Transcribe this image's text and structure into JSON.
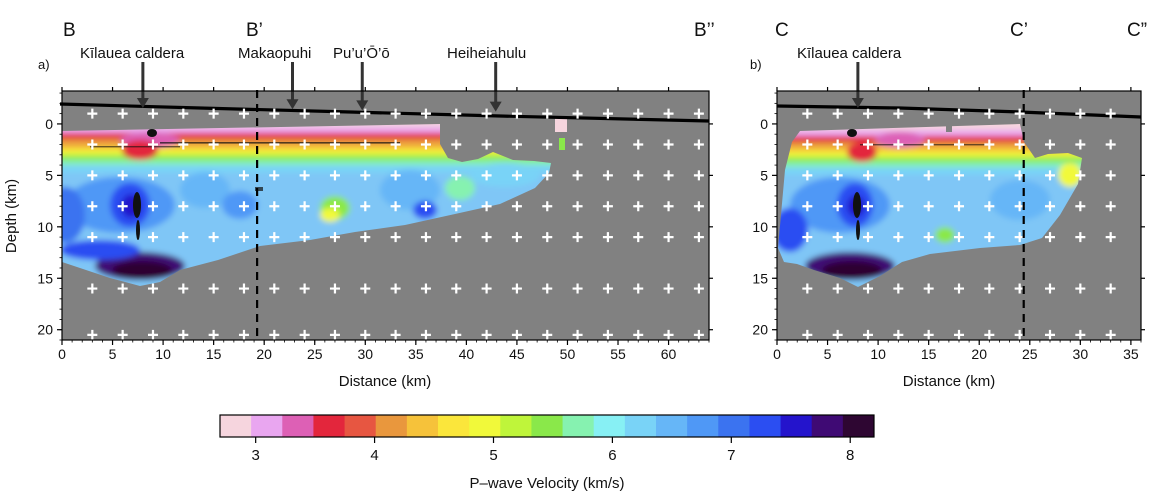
{
  "figure": {
    "panel_a": {
      "panel_label": "a)",
      "corner_labels": [
        "B",
        "B’",
        "B’’"
      ],
      "feature_labels": [
        "Kīlauea caldera",
        "Makaopuhi",
        "Pu’u’Ō’ō",
        "Heiheiahulu"
      ],
      "feature_distances_km": [
        8,
        22.8,
        29.7,
        42.9
      ],
      "marker_line_km": 19.3,
      "xlabel": "Distance (km)",
      "ylabel": "Depth (km)",
      "xlim": [
        0,
        64
      ],
      "ylim": [
        21,
        -3.2
      ],
      "xticks": [
        0,
        5,
        10,
        15,
        20,
        25,
        30,
        35,
        40,
        45,
        50,
        55,
        60
      ],
      "yticks": [
        0,
        5,
        10,
        15,
        20
      ]
    },
    "panel_b": {
      "panel_label": "b)",
      "corner_labels": [
        "C",
        "C’",
        "C”"
      ],
      "feature_labels": [
        "Kīlauea caldera"
      ],
      "feature_distances_km": [
        8
      ],
      "marker_line_km": 24.4,
      "xlabel": "Distance (km)",
      "xlim": [
        0,
        36
      ],
      "ylim": [
        21,
        -3.2
      ],
      "xticks": [
        0,
        5,
        10,
        15,
        20,
        25,
        30,
        35
      ],
      "yticks": [
        0,
        5,
        10,
        15,
        20
      ]
    },
    "colorbar": {
      "label": "P–wave Velocity (km/s)",
      "ticks": [
        3,
        4,
        5,
        6,
        7,
        8
      ],
      "range": [
        2.7,
        8.2
      ],
      "colors": [
        "#f6d5de",
        "#e9a6f0",
        "#dd60b5",
        "#e3263c",
        "#e75641",
        "#e9973d",
        "#f6c23a",
        "#fbe63b",
        "#f1f93a",
        "#bff53a",
        "#8ae84a",
        "#86f2b0",
        "#87f0f4",
        "#79d3f7",
        "#66b6f7",
        "#4f98f6",
        "#3b73f0",
        "#2b4ef2",
        "#2414cc",
        "#3f0a74",
        "#2e0632"
      ]
    }
  }
}
